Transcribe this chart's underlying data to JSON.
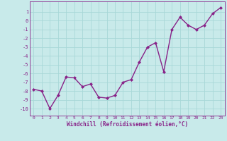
{
  "x": [
    0,
    1,
    2,
    3,
    4,
    5,
    6,
    7,
    8,
    9,
    10,
    11,
    12,
    13,
    14,
    15,
    16,
    17,
    18,
    19,
    20,
    21,
    22,
    23
  ],
  "y": [
    -7.8,
    -8.0,
    -10.0,
    -8.5,
    -6.4,
    -6.5,
    -7.5,
    -7.2,
    -8.7,
    -8.8,
    -8.5,
    -7.0,
    -6.7,
    -4.7,
    -3.0,
    -2.5,
    -5.8,
    -1.0,
    0.4,
    -0.5,
    -1.0,
    -0.5,
    0.8,
    1.5
  ],
  "line_color": "#882288",
  "marker": "D",
  "markersize": 2,
  "linewidth": 1.0,
  "bg_color": "#c8eaea",
  "grid_color": "#a8d8d8",
  "xlabel": "Windchill (Refroidissement éolien,°C)",
  "xlabel_color": "#882288",
  "tick_color": "#882288",
  "ylim": [
    -10.8,
    2.2
  ],
  "xlim": [
    -0.5,
    23.5
  ],
  "ytick_vals": [
    1,
    0,
    -1,
    -2,
    -3,
    -4,
    -5,
    -6,
    -7,
    -8,
    -9,
    -10
  ],
  "ytick_labels": [
    "1",
    "0",
    "-1",
    "-2",
    "-3",
    "-4",
    "-5",
    "-6",
    "-7",
    "-8",
    "-9",
    "-10"
  ],
  "xticks": [
    0,
    1,
    2,
    3,
    4,
    5,
    6,
    7,
    8,
    9,
    10,
    11,
    12,
    13,
    14,
    15,
    16,
    17,
    18,
    19,
    20,
    21,
    22,
    23
  ]
}
